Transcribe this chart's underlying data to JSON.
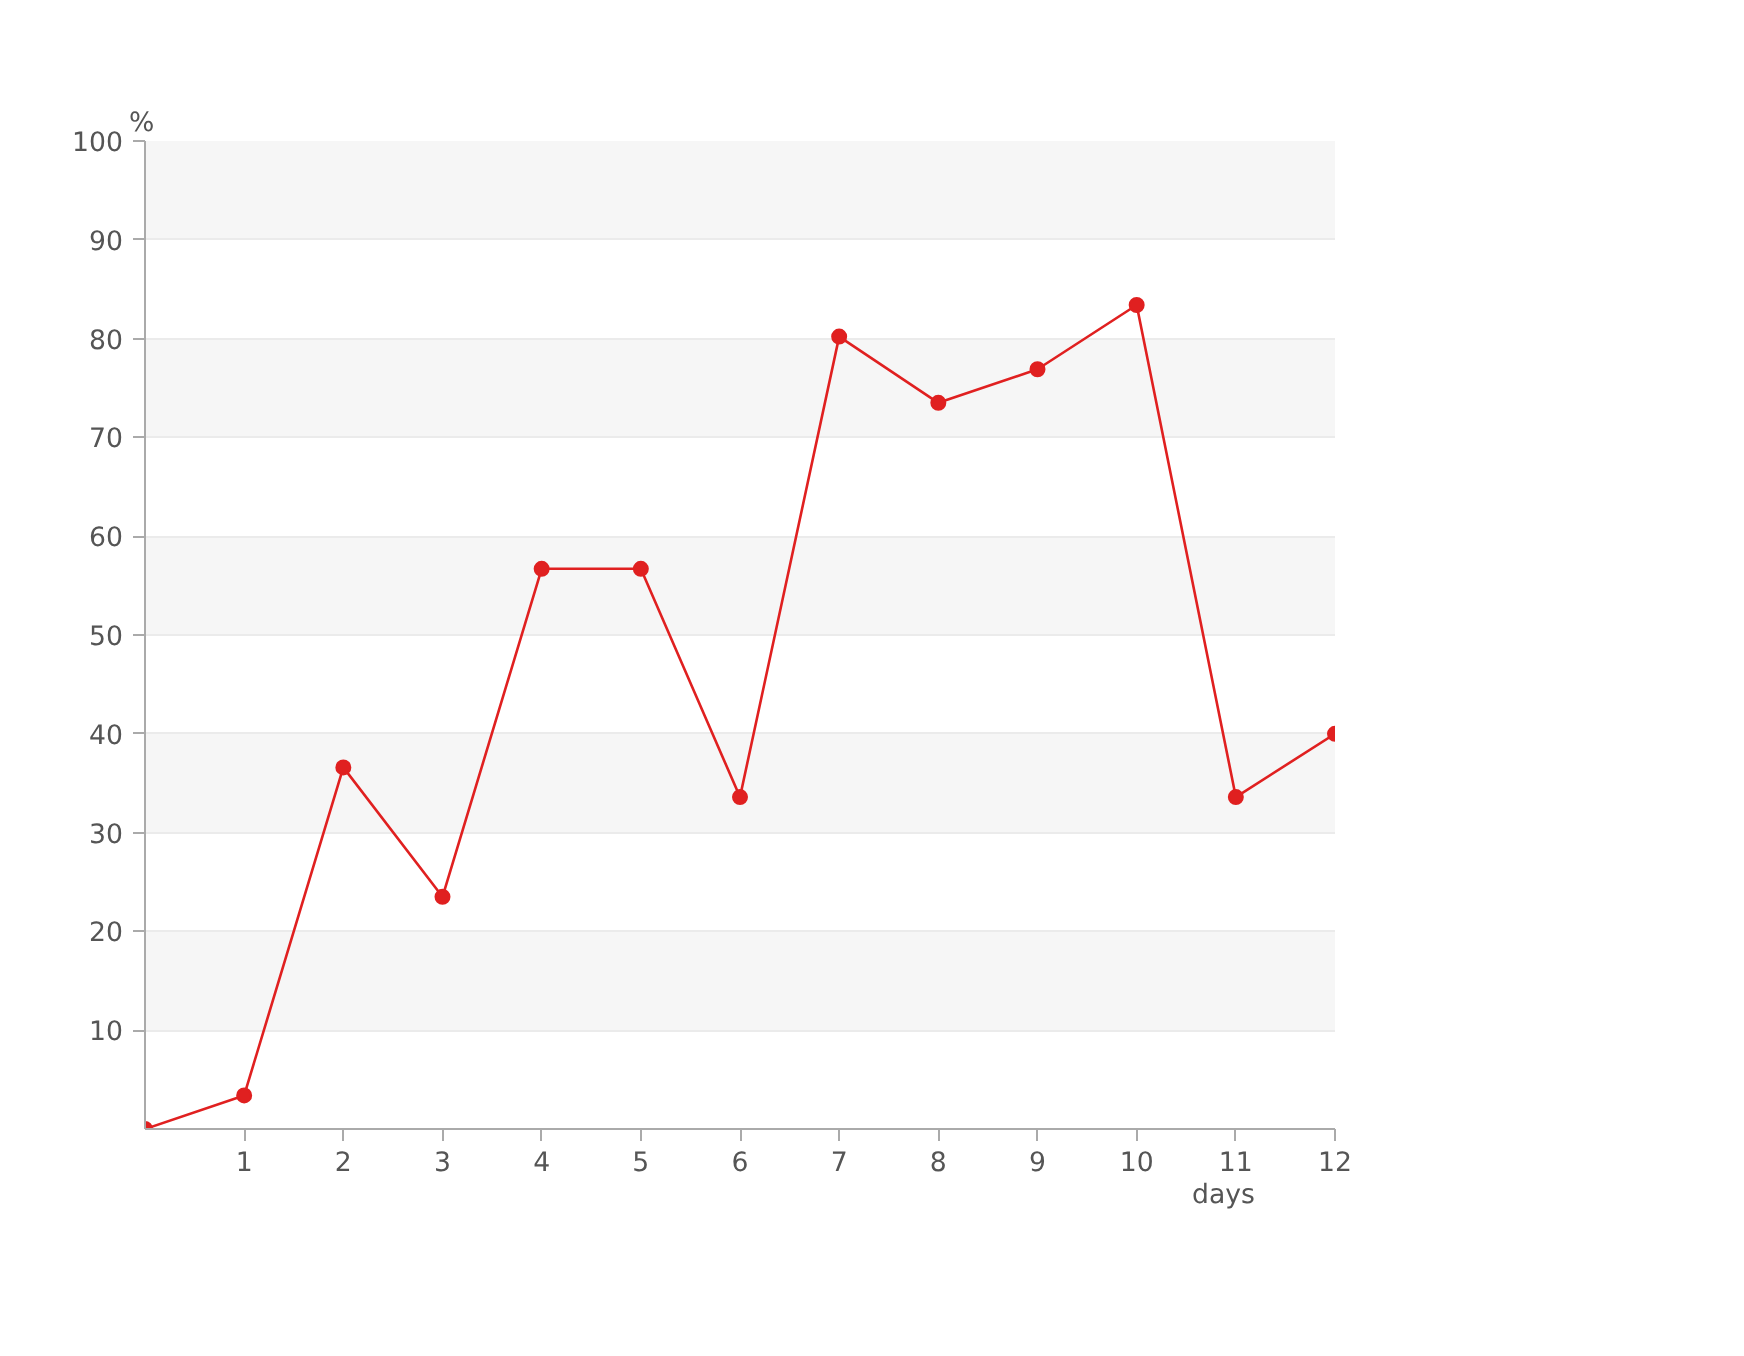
{
  "chart_data": {
    "type": "line",
    "xlabel": "days",
    "ylabel": "%",
    "x": [
      0,
      1,
      2,
      3,
      4,
      5,
      6,
      7,
      8,
      9,
      10,
      11,
      12
    ],
    "series": [
      {
        "color": "#e02020",
        "values": [
          0,
          3.4,
          36.6,
          23.5,
          56.7,
          56.7,
          33.6,
          80.2,
          73.5,
          76.9,
          83.4,
          33.6,
          40
        ]
      }
    ],
    "xlim": [
      0,
      12
    ],
    "xticks": [
      1,
      2,
      3,
      4,
      5,
      6,
      7,
      8,
      9,
      10,
      11,
      12
    ],
    "ylim": [
      0,
      100
    ],
    "yticks": [
      10,
      20,
      30,
      40,
      50,
      60,
      70,
      80,
      90,
      100
    ],
    "grid": "y",
    "marker": "circle",
    "line_style": "solid"
  }
}
